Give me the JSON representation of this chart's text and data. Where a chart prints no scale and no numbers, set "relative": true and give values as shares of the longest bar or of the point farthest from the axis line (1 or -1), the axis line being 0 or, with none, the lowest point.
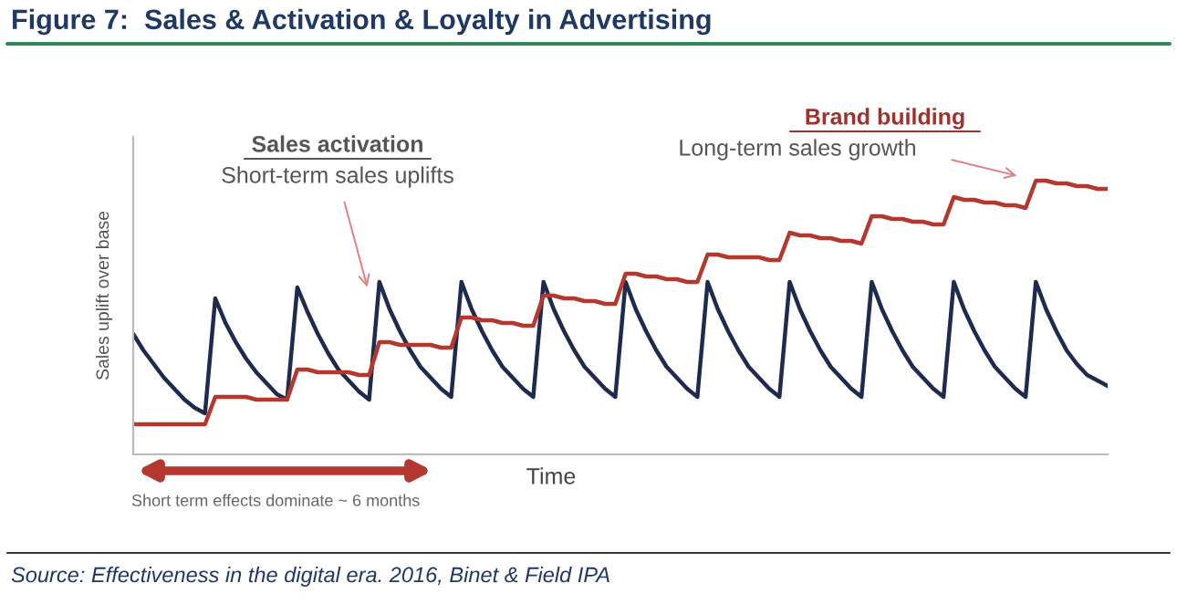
{
  "chart_data": {
    "type": "line",
    "title": "Figure 7:  Sales & Activation & Loyalty in Advertising",
    "xlabel": "Time",
    "ylabel": "Sales uplift over base",
    "relative": true,
    "annotations": [
      "Sales activation",
      "Short-term sales uplifts",
      "Brand building",
      "Long-term sales growth",
      "Short term effects dominate ~ 6 months",
      "Source: Effectiveness in the digital era. 2016, Binet & Field IPA"
    ],
    "categories": [
      null,
      null,
      null,
      null,
      null,
      null,
      null,
      null,
      null,
      null,
      null,
      null,
      null,
      null,
      null,
      null,
      null,
      null,
      null,
      null,
      null,
      null,
      null,
      null,
      null,
      null,
      null,
      null,
      null,
      null,
      null,
      null,
      null,
      null,
      null,
      null,
      null,
      null,
      null,
      null,
      null,
      null,
      null,
      null,
      null,
      null,
      null,
      null,
      null,
      null,
      null,
      null,
      null,
      null,
      null,
      null,
      null,
      null,
      null,
      null,
      null,
      null,
      null,
      null,
      null,
      null,
      null,
      null,
      null,
      null,
      null,
      null,
      null,
      null,
      null,
      null,
      null,
      null,
      null,
      null,
      null,
      null,
      null,
      null,
      null,
      null,
      null,
      null,
      null,
      null,
      null,
      null,
      null,
      null,
      null,
      null
    ],
    "series": [
      {
        "color": "#1f2a4f",
        "values": [
          0.44,
          0.38,
          0.33,
          0.28,
          0.24,
          0.2,
          0.17,
          0.15,
          0.57,
          0.48,
          0.41,
          0.35,
          0.3,
          0.26,
          0.22,
          0.2,
          0.61,
          0.52,
          0.44,
          0.37,
          0.31,
          0.27,
          0.23,
          0.2,
          0.63,
          0.53,
          0.45,
          0.38,
          0.32,
          0.28,
          0.24,
          0.21,
          0.63,
          0.53,
          0.45,
          0.38,
          0.32,
          0.28,
          0.24,
          0.21,
          0.63,
          0.53,
          0.45,
          0.38,
          0.32,
          0.28,
          0.24,
          0.21,
          0.63,
          0.53,
          0.45,
          0.38,
          0.32,
          0.28,
          0.24,
          0.21,
          0.63,
          0.53,
          0.45,
          0.38,
          0.32,
          0.28,
          0.24,
          0.21,
          0.63,
          0.53,
          0.45,
          0.38,
          0.32,
          0.28,
          0.24,
          0.21,
          0.63,
          0.53,
          0.45,
          0.38,
          0.32,
          0.28,
          0.24,
          0.21,
          0.63,
          0.53,
          0.45,
          0.38,
          0.32,
          0.28,
          0.24,
          0.21,
          0.63,
          0.53,
          0.45,
          0.38,
          0.33,
          0.29,
          0.27,
          0.25
        ]
      },
      {
        "color": "#b5382f",
        "values": [
          0.11,
          0.11,
          0.11,
          0.11,
          0.11,
          0.11,
          0.11,
          0.11,
          0.21,
          0.21,
          0.21,
          0.21,
          0.2,
          0.2,
          0.2,
          0.2,
          0.31,
          0.31,
          0.3,
          0.3,
          0.3,
          0.3,
          0.29,
          0.29,
          0.41,
          0.41,
          0.4,
          0.4,
          0.4,
          0.4,
          0.39,
          0.39,
          0.5,
          0.5,
          0.49,
          0.49,
          0.48,
          0.48,
          0.47,
          0.47,
          0.58,
          0.58,
          0.57,
          0.57,
          0.56,
          0.56,
          0.55,
          0.55,
          0.66,
          0.66,
          0.65,
          0.65,
          0.64,
          0.64,
          0.63,
          0.63,
          0.73,
          0.73,
          0.72,
          0.72,
          0.72,
          0.72,
          0.71,
          0.71,
          0.81,
          0.8,
          0.8,
          0.79,
          0.79,
          0.78,
          0.78,
          0.77,
          0.87,
          0.87,
          0.86,
          0.86,
          0.85,
          0.85,
          0.84,
          0.84,
          0.94,
          0.93,
          0.93,
          0.92,
          0.92,
          0.91,
          0.91,
          0.9,
          1.0,
          1.0,
          0.99,
          0.99,
          0.98,
          0.98,
          0.97,
          0.97
        ]
      }
    ]
  }
}
